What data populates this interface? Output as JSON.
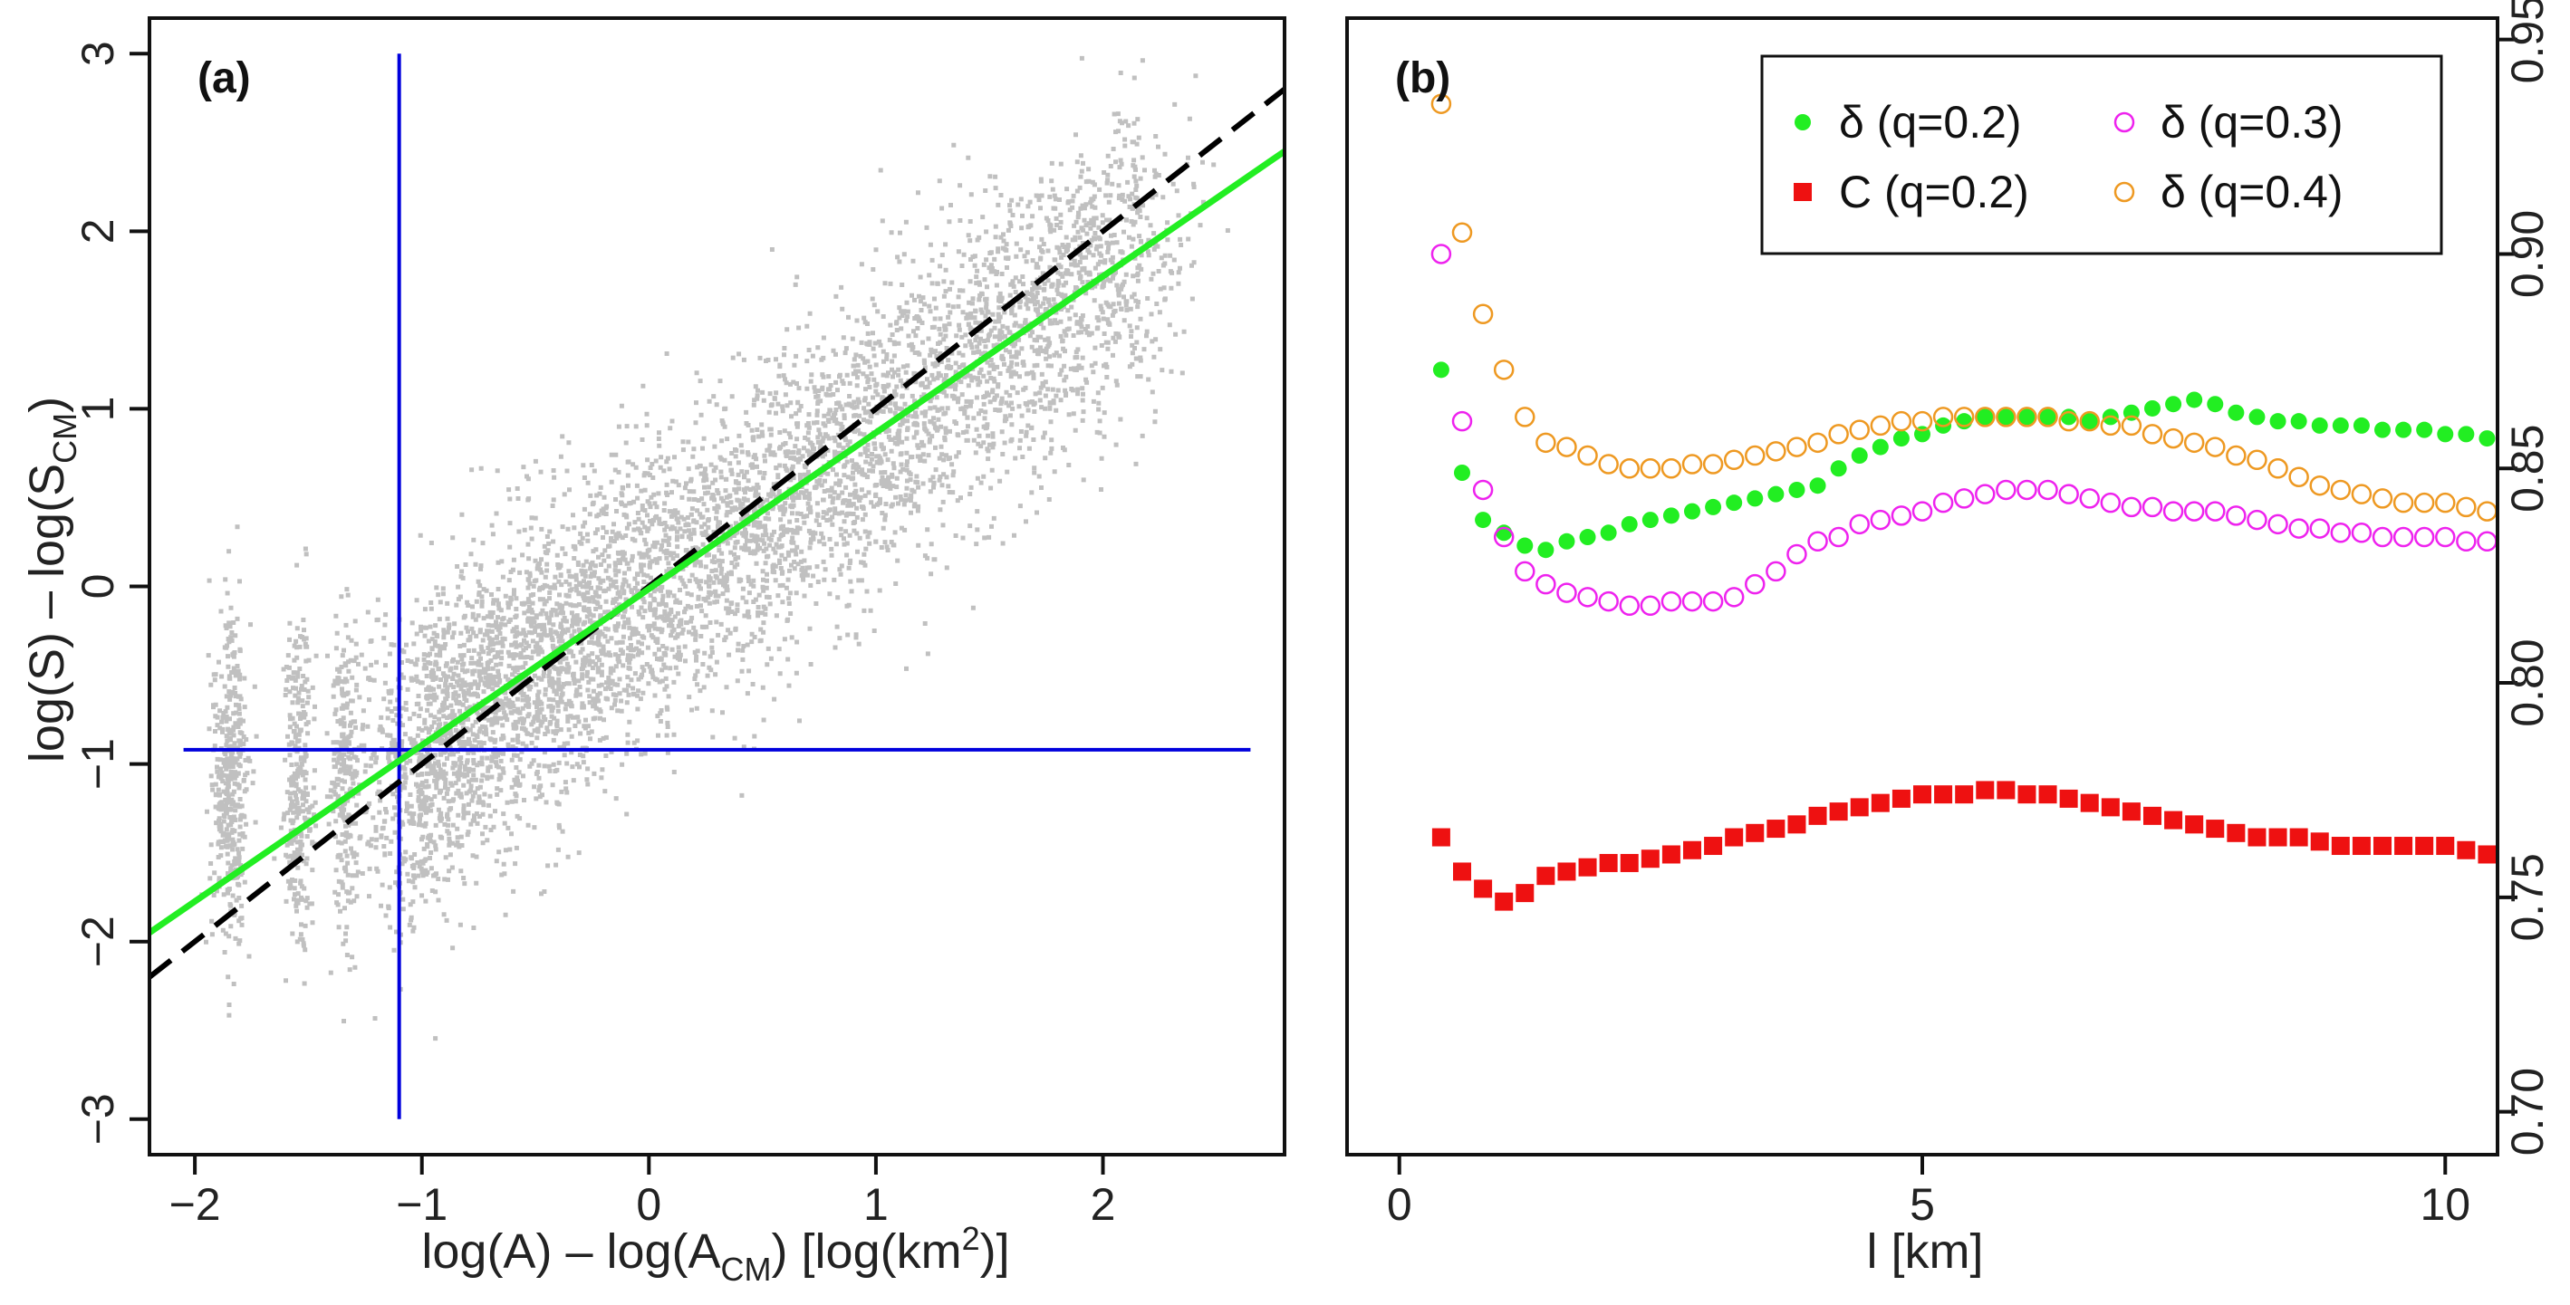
{
  "chart_data": [
    {
      "type": "scatter",
      "panel_label": "(a)",
      "xlabel_parts": {
        "pre": "log(A) – log(A",
        "sub": "CM",
        "mid": ")  [log(km",
        "sup": "2",
        "post": ")]"
      },
      "ylabel_parts": {
        "pre": "log(S) – log(S",
        "sub": "CM",
        "post": ")"
      },
      "xlim": [
        -2.2,
        2.8
      ],
      "ylim": [
        -3.2,
        3.2
      ],
      "x_ticks": [
        -2,
        -1,
        0,
        1,
        2
      ],
      "x_tick_labels": [
        "−2",
        "−1",
        "0",
        "1",
        "2"
      ],
      "y_ticks": [
        -3,
        -2,
        -1,
        0,
        1,
        2,
        3
      ],
      "y_tick_labels": [
        "−3",
        "−2",
        "−1",
        "0",
        "1",
        "2",
        "3"
      ],
      "scatter_color": "#c0c0c0",
      "green_fit": {
        "color": "#22ee22",
        "x": [
          -2.2,
          2.8
        ],
        "y": [
          -1.95,
          2.45
        ]
      },
      "dashed_fit": {
        "color": "#000000",
        "x": [
          -2.2,
          2.8
        ],
        "y": [
          -2.2,
          2.8
        ]
      },
      "vline": {
        "color": "#0000dd",
        "x": -1.1,
        "y": [
          -3.0,
          3.0
        ]
      },
      "hline": {
        "color": "#0000dd",
        "y": -0.92,
        "x": [
          -2.05,
          2.65
        ]
      }
    },
    {
      "type": "scatter",
      "panel_label": "(b)",
      "xlabel": "l  [km]",
      "xlim": [
        -0.5,
        10.5
      ],
      "ylim": [
        0.69,
        0.955
      ],
      "x_ticks": [
        0,
        5,
        10
      ],
      "x_tick_labels": [
        "0",
        "5",
        "10"
      ],
      "y_ticks": [
        0.7,
        0.75,
        0.8,
        0.85,
        0.9,
        0.95
      ],
      "y_tick_labels": [
        "0.70",
        "0.75",
        "0.80",
        "0.85",
        "0.90",
        "0.95"
      ],
      "x": [
        0.4,
        0.6,
        0.8,
        1.0,
        1.2,
        1.4,
        1.6,
        1.8,
        2.0,
        2.2,
        2.4,
        2.6,
        2.8,
        3.0,
        3.2,
        3.4,
        3.6,
        3.8,
        4.0,
        4.2,
        4.4,
        4.6,
        4.8,
        5.0,
        5.2,
        5.4,
        5.6,
        5.8,
        6.0,
        6.2,
        6.4,
        6.6,
        6.8,
        7.0,
        7.2,
        7.4,
        7.6,
        7.8,
        8.0,
        8.2,
        8.4,
        8.6,
        8.8,
        9.0,
        9.2,
        9.4,
        9.6,
        9.8,
        10.0,
        10.2,
        10.4
      ],
      "series": [
        {
          "name": "δ (q=0.2)",
          "marker": "filled-circle",
          "color": "#22ee22",
          "values": [
            0.873,
            0.849,
            0.838,
            0.835,
            0.832,
            0.831,
            0.833,
            0.834,
            0.835,
            0.837,
            0.838,
            0.839,
            0.84,
            0.841,
            0.842,
            0.843,
            0.844,
            0.845,
            0.846,
            0.85,
            0.853,
            0.855,
            0.857,
            0.858,
            0.86,
            0.861,
            0.862,
            0.862,
            0.862,
            0.862,
            0.862,
            0.861,
            0.862,
            0.863,
            0.864,
            0.865,
            0.866,
            0.865,
            0.863,
            0.862,
            0.861,
            0.861,
            0.86,
            0.86,
            0.86,
            0.859,
            0.859,
            0.859,
            0.858,
            0.858,
            0.857
          ]
        },
        {
          "name": "C (q=0.2)",
          "marker": "filled-square",
          "color": "#ee1111",
          "values": [
            0.764,
            0.756,
            0.752,
            0.749,
            0.751,
            0.755,
            0.756,
            0.757,
            0.758,
            0.758,
            0.759,
            0.76,
            0.761,
            0.762,
            0.764,
            0.765,
            0.766,
            0.767,
            0.769,
            0.77,
            0.771,
            0.772,
            0.773,
            0.774,
            0.774,
            0.774,
            0.775,
            0.775,
            0.774,
            0.774,
            0.773,
            0.772,
            0.771,
            0.77,
            0.769,
            0.768,
            0.767,
            0.766,
            0.765,
            0.764,
            0.764,
            0.764,
            0.763,
            0.762,
            0.762,
            0.762,
            0.762,
            0.762,
            0.762,
            0.761,
            0.76
          ]
        },
        {
          "name": "δ (q=0.3)",
          "marker": "open-circle",
          "color": "#ee22ee",
          "values": [
            0.9,
            0.861,
            0.845,
            0.834,
            0.826,
            0.823,
            0.821,
            0.82,
            0.819,
            0.818,
            0.818,
            0.819,
            0.819,
            0.819,
            0.82,
            0.823,
            0.826,
            0.83,
            0.833,
            0.834,
            0.837,
            0.838,
            0.839,
            0.84,
            0.842,
            0.843,
            0.844,
            0.845,
            0.845,
            0.845,
            0.844,
            0.843,
            0.842,
            0.841,
            0.841,
            0.84,
            0.84,
            0.84,
            0.839,
            0.838,
            0.837,
            0.836,
            0.836,
            0.835,
            0.835,
            0.834,
            0.834,
            0.834,
            0.834,
            0.833,
            0.833
          ]
        },
        {
          "name": "δ (q=0.4)",
          "marker": "open-circle",
          "color": "#ee9922",
          "values": [
            0.935,
            0.905,
            0.886,
            0.873,
            0.862,
            0.856,
            0.855,
            0.853,
            0.851,
            0.85,
            0.85,
            0.85,
            0.851,
            0.851,
            0.852,
            0.853,
            0.854,
            0.855,
            0.856,
            0.858,
            0.859,
            0.86,
            0.861,
            0.861,
            0.862,
            0.862,
            0.862,
            0.862,
            0.862,
            0.862,
            0.861,
            0.861,
            0.86,
            0.86,
            0.858,
            0.857,
            0.856,
            0.855,
            0.853,
            0.852,
            0.85,
            0.848,
            0.846,
            0.845,
            0.844,
            0.843,
            0.842,
            0.842,
            0.842,
            0.841,
            0.84
          ]
        }
      ],
      "legend": {
        "placement": "top-right",
        "columns": 2
      }
    }
  ]
}
